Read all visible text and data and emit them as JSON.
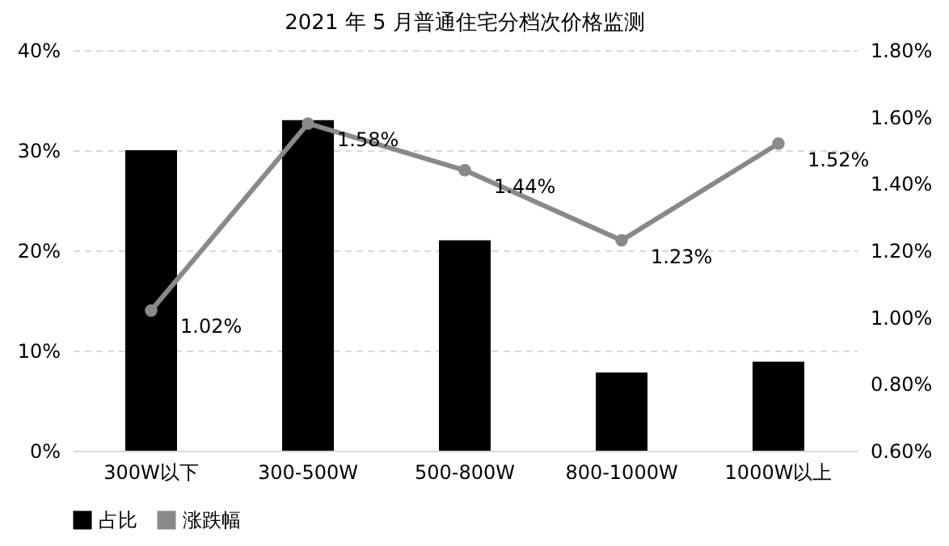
{
  "chart_data": {
    "type": "bar",
    "title": "2021 年 5 月普通住宅分档次价格监测",
    "categories": [
      "300W以下",
      "300-500W",
      "500-800W",
      "800-1000W",
      "1000W以上"
    ],
    "series": [
      {
        "name": "占比",
        "color": "#000000",
        "values": [
          30,
          33,
          21,
          7.8,
          8.9
        ]
      },
      {
        "name": "涨跌幅",
        "type": "line",
        "axis": "y2",
        "color": "#898989",
        "values": [
          1.02,
          1.58,
          1.44,
          1.23,
          1.52
        ],
        "value_labels": [
          "1.02%",
          "1.58%",
          "1.44%",
          "1.23%",
          "1.52%"
        ]
      }
    ],
    "ylim": [
      0,
      40
    ],
    "yticks": [
      {
        "value": 0,
        "label": "0%"
      },
      {
        "value": 10,
        "label": "10%"
      },
      {
        "value": 20,
        "label": "20%"
      },
      {
        "value": 30,
        "label": "30%"
      },
      {
        "value": 40,
        "label": "40%"
      }
    ],
    "y2lim": [
      0.6,
      1.8
    ],
    "y2ticks": [
      {
        "value": 0.6,
        "label": "0.60%"
      },
      {
        "value": 0.8,
        "label": "0.80%"
      },
      {
        "value": 1.0,
        "label": "1.00%"
      },
      {
        "value": 1.2,
        "label": "1.20%"
      },
      {
        "value": 1.4,
        "label": "1.40%"
      },
      {
        "value": 1.6,
        "label": "1.60%"
      },
      {
        "value": 1.8,
        "label": "1.80%"
      }
    ],
    "grid": "y",
    "legend": "bottom",
    "marker": "circle"
  }
}
